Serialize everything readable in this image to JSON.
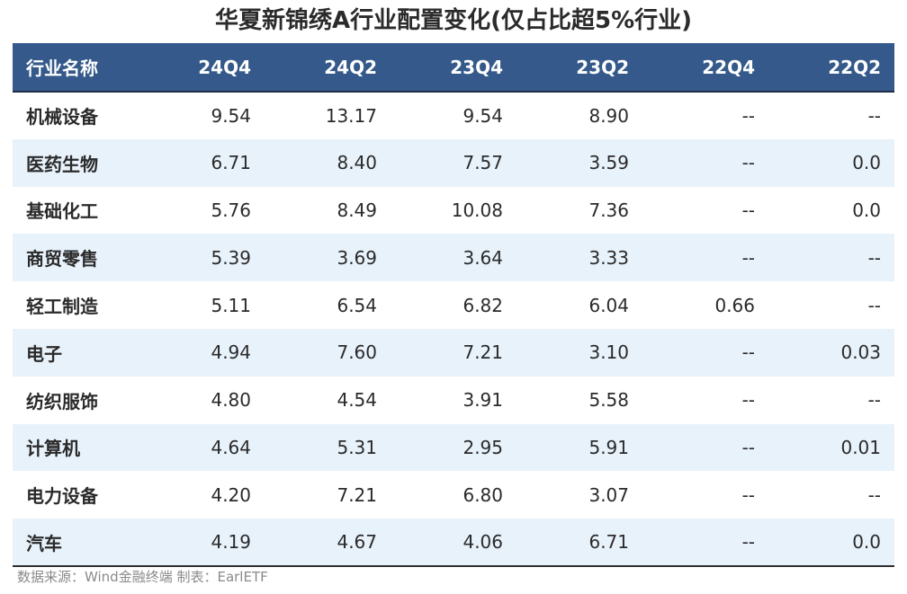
{
  "title": "华夏新锦绣A行业配置变化(仅占比超5%行业)",
  "table": {
    "headers": [
      "行业名称",
      "24Q4",
      "24Q2",
      "23Q4",
      "23Q2",
      "22Q4",
      "22Q2"
    ],
    "rows": [
      [
        "机械设备",
        "9.54",
        "13.17",
        "9.54",
        "8.90",
        "--",
        "--"
      ],
      [
        "医药生物",
        "6.71",
        "8.40",
        "7.57",
        "3.59",
        "--",
        "0.0"
      ],
      [
        "基础化工",
        "5.76",
        "8.49",
        "10.08",
        "7.36",
        "--",
        "0.0"
      ],
      [
        "商贸零售",
        "5.39",
        "3.69",
        "3.64",
        "3.33",
        "--",
        "--"
      ],
      [
        "轻工制造",
        "5.11",
        "6.54",
        "6.82",
        "6.04",
        "0.66",
        "--"
      ],
      [
        "电子",
        "4.94",
        "7.60",
        "7.21",
        "3.10",
        "--",
        "0.03"
      ],
      [
        "纺织服饰",
        "4.80",
        "4.54",
        "3.91",
        "5.58",
        "--",
        "--"
      ],
      [
        "计算机",
        "4.64",
        "5.31",
        "2.95",
        "5.91",
        "--",
        "0.01"
      ],
      [
        "电力设备",
        "4.20",
        "7.21",
        "6.80",
        "3.07",
        "--",
        "--"
      ],
      [
        "汽车",
        "4.19",
        "4.67",
        "4.06",
        "6.71",
        "--",
        "0.0"
      ]
    ]
  },
  "source": "数据来源：Wind金融终端 制表：EarlETF",
  "colors": {
    "header_background": "#34598a",
    "stripe_background": "#e8f2fb"
  }
}
